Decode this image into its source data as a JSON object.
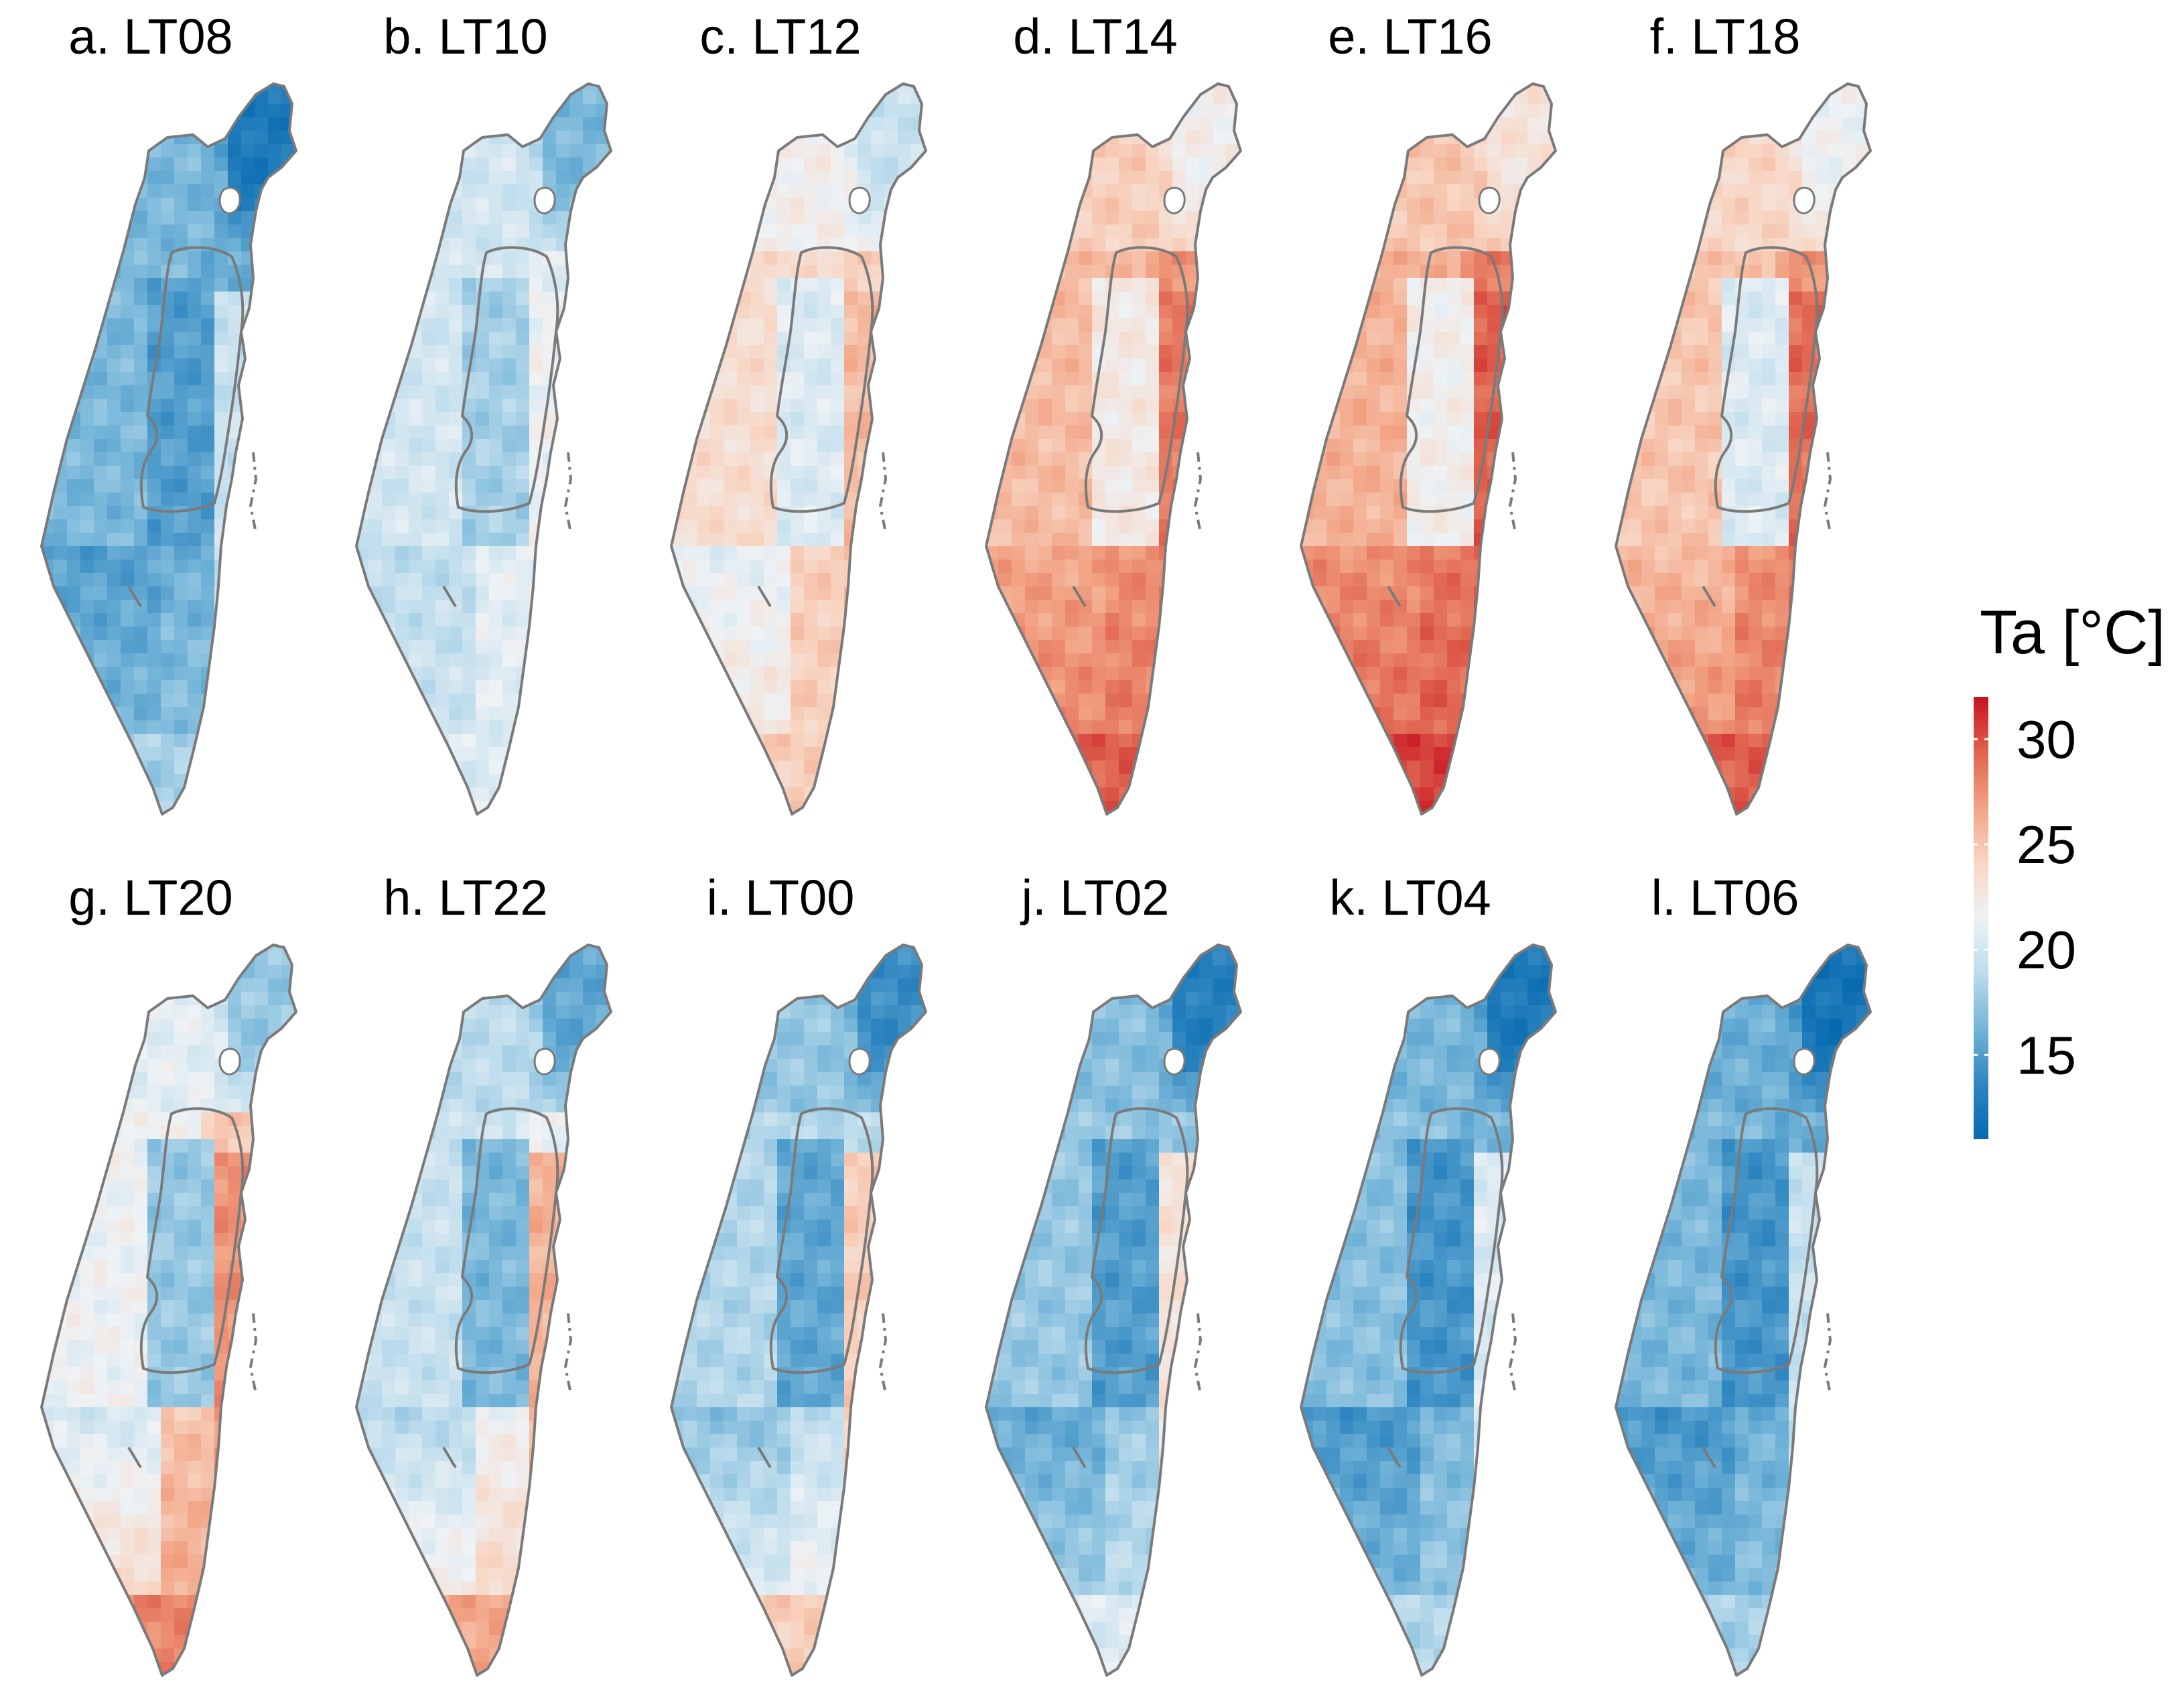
{
  "legend": {
    "title": "Ta [°C]",
    "ticks": [
      30,
      25,
      20,
      15
    ],
    "range": [
      11,
      32
    ],
    "colors": [
      "#0569b0",
      "#2f86c0",
      "#73b4d8",
      "#bcdcec",
      "#eef2f5",
      "#f8d6c4",
      "#f2a485",
      "#e06450",
      "#c6121f"
    ]
  },
  "panels": [
    {
      "label": "a. LT08",
      "regions": {
        "coast": 16.5,
        "center": 15.0,
        "north": 16.5,
        "east": 16.0,
        "valley": 19.5,
        "south": 15.0,
        "tip": 18.0,
        "golan": 12.5
      }
    },
    {
      "label": "b. LT10",
      "regions": {
        "coast": 20.0,
        "center": 18.0,
        "north": 20.0,
        "east": 21.0,
        "valley": 21.5,
        "south": 19.0,
        "tip": 20.5,
        "golan": 16.5
      }
    },
    {
      "label": "c. LT12",
      "regions": {
        "coast": 23.5,
        "center": 20.5,
        "north": 22.0,
        "east": 24.5,
        "valley": 25.5,
        "south": 21.0,
        "tip": 24.5,
        "golan": 19.5
      }
    },
    {
      "label": "d. LT14",
      "regions": {
        "coast": 25.5,
        "center": 22.5,
        "north": 24.5,
        "east": 27.5,
        "valley": 28.5,
        "south": 26.5,
        "tip": 29.5,
        "golan": 22.0
      }
    },
    {
      "label": "e. LT16",
      "regions": {
        "coast": 26.0,
        "center": 22.0,
        "north": 25.0,
        "east": 28.5,
        "valley": 29.5,
        "south": 27.5,
        "tip": 30.5,
        "golan": 23.0
      }
    },
    {
      "label": "f. LT18",
      "regions": {
        "coast": 25.0,
        "center": 20.5,
        "north": 24.0,
        "east": 27.5,
        "valley": 29.0,
        "south": 25.5,
        "tip": 29.5,
        "golan": 21.5
      }
    },
    {
      "label": "g. LT20",
      "regions": {
        "coast": 21.5,
        "center": 17.5,
        "north": 21.0,
        "east": 25.0,
        "valley": 27.5,
        "south": 20.0,
        "tip": 28.0,
        "golan": 17.5
      }
    },
    {
      "label": "h. LT22",
      "regions": {
        "coast": 19.5,
        "center": 16.5,
        "north": 19.0,
        "east": 21.5,
        "valley": 26.0,
        "south": 18.5,
        "tip": 26.5,
        "golan": 15.5
      }
    },
    {
      "label": "i. LT00",
      "regions": {
        "coast": 18.5,
        "center": 15.5,
        "north": 17.5,
        "east": 19.0,
        "valley": 24.5,
        "south": 17.0,
        "tip": 24.5,
        "golan": 14.0
      }
    },
    {
      "label": "j. LT02",
      "regions": {
        "coast": 17.5,
        "center": 15.0,
        "north": 17.0,
        "east": 17.5,
        "valley": 23.0,
        "south": 15.5,
        "tip": 20.5,
        "golan": 13.0
      }
    },
    {
      "label": "k. LT04",
      "regions": {
        "coast": 17.0,
        "center": 14.5,
        "north": 16.5,
        "east": 16.5,
        "valley": 20.5,
        "south": 14.5,
        "tip": 18.5,
        "golan": 12.5
      }
    },
    {
      "label": "l. LT06",
      "regions": {
        "coast": 16.5,
        "center": 14.5,
        "north": 16.0,
        "east": 16.0,
        "valley": 19.5,
        "south": 14.5,
        "tip": 18.0,
        "golan": 12.0
      }
    }
  ]
}
